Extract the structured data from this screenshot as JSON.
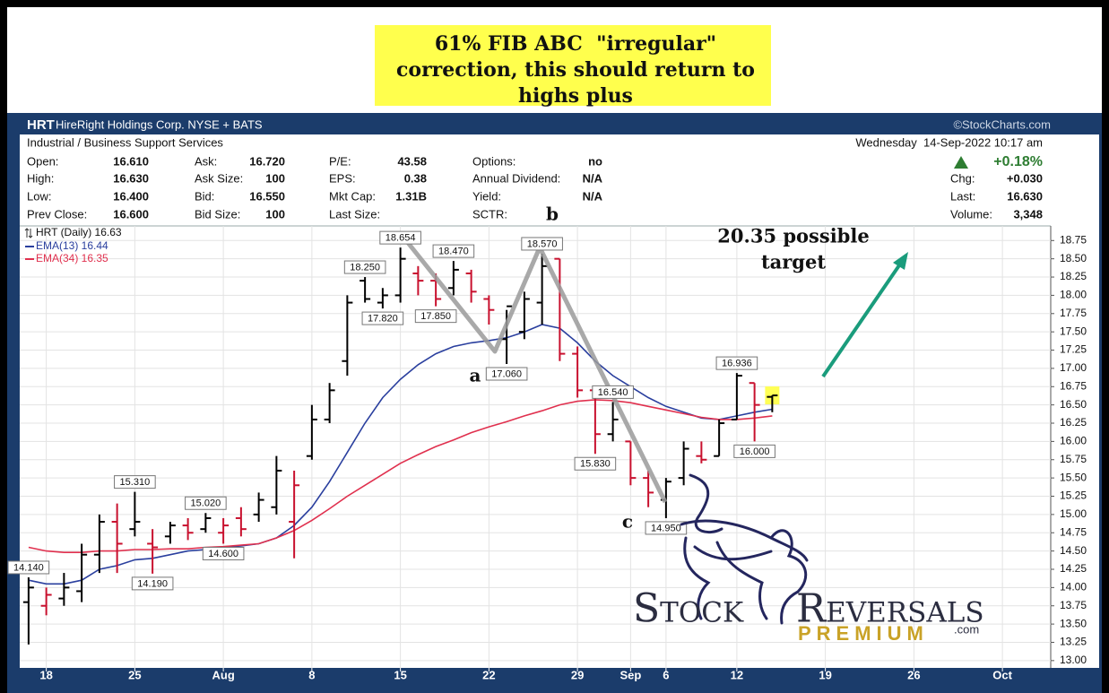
{
  "callout": {
    "lines": [
      "61% FIB ABC  \"irregular\"",
      "correction, this should return to",
      "highs plus"
    ]
  },
  "header": {
    "symbol": "HRT",
    "name": "HireRight Holdings Corp. NYSE + BATS",
    "source": "©StockCharts.com"
  },
  "quote": {
    "sector": "Industrial / Business Support Services",
    "timestamp": "Wednesday  14-Sep-2022 10:17 am",
    "columns": [
      [
        [
          "Open:",
          "16.610"
        ],
        [
          "High:",
          "16.630"
        ],
        [
          "Low:",
          "16.400"
        ],
        [
          "Prev Close:",
          "16.600"
        ]
      ],
      [
        [
          "Ask:",
          "16.720"
        ],
        [
          "Ask Size:",
          "100"
        ],
        [
          "Bid:",
          "16.550"
        ],
        [
          "Bid Size:",
          "100"
        ]
      ],
      [
        [
          "P/E:",
          "43.58"
        ],
        [
          "EPS:",
          "0.38"
        ],
        [
          "Mkt Cap:",
          "1.31B"
        ],
        [
          "Last Size:"
        ]
      ],
      [
        [
          "Options:",
          "no"
        ],
        [
          "Annual Dividend:",
          "N/A"
        ],
        [
          "Yield:",
          "N/A"
        ],
        [
          "SCTR:"
        ]
      ]
    ],
    "change_pct": "+0.18%",
    "right": [
      [
        "Chg:",
        "+0.030"
      ],
      [
        "Last:",
        "16.630"
      ],
      [
        "Volume:",
        "3,348"
      ]
    ]
  },
  "chart_data": {
    "type": "ohlc",
    "legend_title": "HRT (Daily) 16.63",
    "up_color": "#000000",
    "down_color": "#c8102e",
    "categories": [
      null,
      "18",
      null,
      null,
      null,
      null,
      "25",
      null,
      null,
      null,
      null,
      "Aug",
      null,
      null,
      null,
      null,
      "8",
      null,
      null,
      null,
      null,
      "15",
      null,
      null,
      null,
      null,
      "22",
      null,
      null,
      null,
      null,
      "29",
      null,
      null,
      "Sep",
      null,
      "6",
      null,
      null,
      null,
      "12",
      null,
      null,
      null,
      null,
      "19",
      null,
      null,
      null,
      null,
      "26",
      null,
      null,
      null,
      null,
      "Oct"
    ],
    "open": [
      13.8,
      13.75,
      13.85,
      13.95,
      14.45,
      14.9,
      14.8,
      14.6,
      14.7,
      14.85,
      14.8,
      14.75,
      14.95,
      15.0,
      15.1,
      14.9,
      15.8,
      16.3,
      17.1,
      18.2,
      17.9,
      18.0,
      18.3,
      18.2,
      18.1,
      18.3,
      17.95,
      17.4,
      17.5,
      17.9,
      18.5,
      17.2,
      16.7,
      16.1,
      16.0,
      15.5,
      15.2,
      15.5,
      15.8,
      15.8,
      16.3,
      16.8,
      16.61,
      null,
      null,
      null,
      null,
      null,
      null,
      null,
      null,
      null,
      null,
      null,
      null,
      null
    ],
    "high": [
      14.14,
      14.0,
      14.2,
      14.6,
      15.0,
      15.15,
      15.31,
      14.8,
      14.9,
      14.95,
      15.02,
      14.95,
      15.1,
      15.3,
      15.8,
      15.6,
      16.5,
      16.8,
      18.0,
      18.25,
      18.1,
      18.654,
      18.4,
      18.3,
      18.47,
      18.35,
      18.0,
      17.8,
      18.05,
      18.57,
      18.5,
      17.3,
      16.75,
      16.54,
      16.0,
      15.6,
      15.5,
      16.0,
      16.0,
      16.3,
      16.936,
      16.8,
      16.63,
      null,
      null,
      null,
      null,
      null,
      null,
      null,
      null,
      null,
      null,
      null,
      null,
      null
    ],
    "low": [
      13.22,
      13.62,
      13.75,
      13.8,
      14.2,
      14.2,
      14.7,
      14.19,
      14.6,
      14.65,
      14.75,
      14.6,
      14.7,
      14.9,
      15.0,
      14.4,
      15.75,
      16.25,
      16.9,
      17.9,
      17.82,
      17.9,
      18.0,
      17.85,
      18.0,
      17.9,
      17.6,
      17.06,
      17.4,
      17.6,
      17.1,
      16.6,
      15.83,
      16.0,
      15.4,
      15.1,
      14.95,
      15.4,
      15.7,
      15.8,
      16.3,
      16.0,
      16.4,
      null,
      null,
      null,
      null,
      null,
      null,
      null,
      null,
      null,
      null,
      null,
      null,
      null
    ],
    "close": [
      14.0,
      13.9,
      14.0,
      14.45,
      14.9,
      14.6,
      14.9,
      14.55,
      14.85,
      14.75,
      14.95,
      14.85,
      14.8,
      15.2,
      15.6,
      15.4,
      16.3,
      16.7,
      17.9,
      17.95,
      18.0,
      18.5,
      18.2,
      17.95,
      18.35,
      18.05,
      17.8,
      17.85,
      17.95,
      18.4,
      17.2,
      16.7,
      16.1,
      16.3,
      15.5,
      15.3,
      15.45,
      15.9,
      15.75,
      16.25,
      16.9,
      16.5,
      16.63,
      null,
      null,
      null,
      null,
      null,
      null,
      null,
      null,
      null,
      null,
      null,
      null,
      null
    ],
    "high_labels": [
      "14.140",
      null,
      null,
      null,
      null,
      null,
      "15.310",
      null,
      null,
      null,
      "15.020",
      null,
      null,
      null,
      null,
      null,
      null,
      null,
      null,
      "18.250",
      null,
      "18.654",
      null,
      null,
      "18.470",
      null,
      null,
      null,
      null,
      "18.570",
      null,
      null,
      null,
      "16.540",
      null,
      null,
      null,
      null,
      null,
      null,
      "16.936",
      null,
      null,
      null,
      null,
      null,
      null,
      null,
      null,
      null,
      null,
      null,
      null,
      null,
      null,
      null
    ],
    "low_labels": [
      null,
      null,
      null,
      null,
      null,
      null,
      null,
      "14.190",
      null,
      null,
      null,
      "14.600",
      null,
      null,
      null,
      null,
      null,
      null,
      null,
      null,
      "17.820",
      null,
      null,
      "17.850",
      null,
      null,
      null,
      "17.060",
      null,
      null,
      null,
      null,
      "15.830",
      null,
      null,
      null,
      "14.950",
      null,
      null,
      null,
      null,
      "16.000",
      null,
      null,
      null,
      null,
      null,
      null,
      null,
      null,
      null,
      null,
      null,
      null,
      null,
      null
    ],
    "series": [
      {
        "name": "EMA(13) 16.44",
        "color": "#2a3f9e",
        "values": [
          14.1,
          14.05,
          14.05,
          14.1,
          14.25,
          14.3,
          14.38,
          14.4,
          14.45,
          14.5,
          14.52,
          14.55,
          14.57,
          14.6,
          14.68,
          14.85,
          15.1,
          15.45,
          15.85,
          16.25,
          16.6,
          16.85,
          17.05,
          17.2,
          17.3,
          17.35,
          17.38,
          17.42,
          17.5,
          17.6,
          17.55,
          17.35,
          17.1,
          16.9,
          16.75,
          16.6,
          16.48,
          16.4,
          16.32,
          16.3,
          16.35,
          16.4,
          16.44,
          null,
          null,
          null,
          null,
          null,
          null,
          null,
          null,
          null,
          null,
          null,
          null,
          null
        ]
      },
      {
        "name": "EMA(34) 16.35",
        "color": "#e0304e",
        "values": [
          14.55,
          14.5,
          14.48,
          14.48,
          14.5,
          14.5,
          14.52,
          14.52,
          14.53,
          14.53,
          14.55,
          14.56,
          14.58,
          14.6,
          14.68,
          14.78,
          14.92,
          15.08,
          15.25,
          15.4,
          15.55,
          15.7,
          15.82,
          15.93,
          16.02,
          16.12,
          16.2,
          16.27,
          16.35,
          16.42,
          16.5,
          16.55,
          16.57,
          16.56,
          16.53,
          16.48,
          16.43,
          16.38,
          16.33,
          16.3,
          16.3,
          16.32,
          16.35,
          null,
          null,
          null,
          null,
          null,
          null,
          null,
          null,
          null,
          null,
          null,
          null,
          null
        ]
      }
    ],
    "ylim": [
      12.9,
      18.95
    ],
    "yticks": [
      {
        "value": 13,
        "label": "13.00"
      },
      {
        "value": 13.25,
        "label": "13.25"
      },
      {
        "value": 13.5,
        "label": "13.50"
      },
      {
        "value": 13.75,
        "label": "13.75"
      },
      {
        "value": 14,
        "label": "14.00"
      },
      {
        "value": 14.25,
        "label": "14.25"
      },
      {
        "value": 14.5,
        "label": "14.50"
      },
      {
        "value": 14.75,
        "label": "14.75"
      },
      {
        "value": 15,
        "label": "15.00"
      },
      {
        "value": 15.25,
        "label": "15.25"
      },
      {
        "value": 15.5,
        "label": "15.50"
      },
      {
        "value": 15.75,
        "label": "15.75"
      },
      {
        "value": 16,
        "label": "16.00"
      },
      {
        "value": 16.25,
        "label": "16.25"
      },
      {
        "value": 16.5,
        "label": "16.50"
      },
      {
        "value": 16.75,
        "label": "16.75"
      },
      {
        "value": 17,
        "label": "17.00"
      },
      {
        "value": 17.25,
        "label": "17.25"
      },
      {
        "value": 17.5,
        "label": "17.50"
      },
      {
        "value": 17.75,
        "label": "17.75"
      },
      {
        "value": 18,
        "label": "18.00"
      },
      {
        "value": 18.25,
        "label": "18.25"
      },
      {
        "value": 18.5,
        "label": "18.50"
      },
      {
        "value": 18.75,
        "label": "18.75"
      }
    ],
    "grid": true,
    "wave_labels": [
      "a",
      "b",
      "c"
    ],
    "target_note": [
      "20.35 possible",
      "target"
    ]
  },
  "logo": {
    "word_1": "Stock",
    "word_2": "Reversals",
    "tagline": "PREMIUM",
    "suffix": ".com"
  }
}
